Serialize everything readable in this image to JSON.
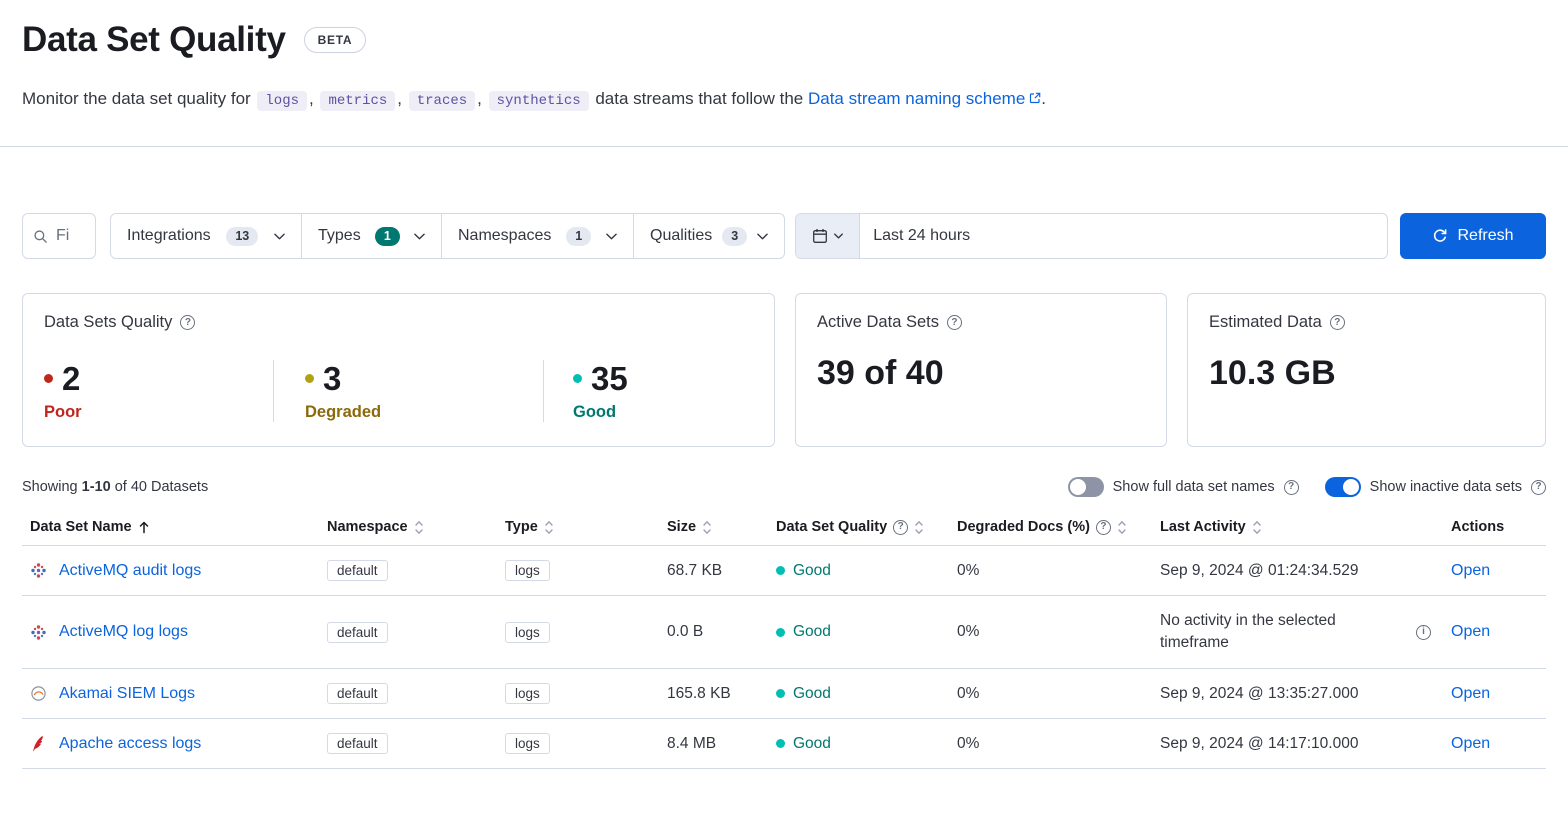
{
  "colors": {
    "accent": "#0b64dd",
    "border": "#d3dae6",
    "text": "#343741",
    "title": "#1a1c21",
    "success": "#007871",
    "success_dot": "#00bfb3",
    "danger": "#bd271e",
    "warning": "#8a6a0b",
    "warning_dot": "#d6bf57",
    "code_bg": "#efedf5",
    "code_text": "#5b53a2",
    "badge_bg": "#e4e8f0",
    "toggle_off": "#8e94a6"
  },
  "page": {
    "title": "Data Set Quality",
    "beta_badge": "BETA",
    "intro": {
      "prefix": "Monitor the data set quality for ",
      "codes": [
        "logs",
        "metrics",
        "traces",
        "synthetics"
      ],
      "separator": ", ",
      "middle": " data streams that follow the ",
      "link": "Data stream naming scheme",
      "suffix": "."
    }
  },
  "filters": {
    "search_placeholder": "Fi",
    "buttons": [
      {
        "label": "Integrations",
        "count": "13",
        "active": false
      },
      {
        "label": "Types",
        "count": "1",
        "active": true
      },
      {
        "label": "Namespaces",
        "count": "1",
        "active": false
      },
      {
        "label": "Qualities",
        "count": "3",
        "active": false
      }
    ],
    "time_range": "Last 24 hours",
    "refresh_label": "Refresh"
  },
  "summary": {
    "quality_panel": {
      "title": "Data Sets Quality",
      "stats": [
        {
          "value": "2",
          "label": "Poor",
          "color": "#bd271e",
          "dot": "#bd271e"
        },
        {
          "value": "3",
          "label": "Degraded",
          "color": "#8a6a0b",
          "dot": "#b3a115"
        },
        {
          "value": "35",
          "label": "Good",
          "color": "#007871",
          "dot": "#00bfb3"
        }
      ]
    },
    "active_panel": {
      "title": "Active Data Sets",
      "value": "39 of 40"
    },
    "estimated_panel": {
      "title": "Estimated Data",
      "value": "10.3 GB"
    }
  },
  "table": {
    "showing": {
      "prefix": "Showing ",
      "range": "1-10",
      "suffix": " of 40 Datasets"
    },
    "toggles": [
      {
        "label": "Show full data set names",
        "on": false
      },
      {
        "label": "Show inactive data sets",
        "on": true
      }
    ],
    "headers": [
      "Data Set Name",
      "Namespace",
      "Type",
      "Size",
      "Data Set Quality",
      "Degraded Docs (%)",
      "Last Activity",
      "Actions"
    ],
    "rows": [
      {
        "name": "ActiveMQ audit logs",
        "icon": "activemq",
        "namespace": "default",
        "type": "logs",
        "size": "68.7 KB",
        "quality": "Good",
        "degraded": "0%",
        "last_activity": "Sep 9, 2024 @ 01:24:34.529",
        "no_activity": false,
        "action": "Open"
      },
      {
        "name": "ActiveMQ log logs",
        "icon": "activemq",
        "namespace": "default",
        "type": "logs",
        "size": "0.0 B",
        "quality": "Good",
        "degraded": "0%",
        "last_activity": "No activity in the selected timeframe",
        "no_activity": true,
        "action": "Open"
      },
      {
        "name": "Akamai SIEM Logs",
        "icon": "akamai",
        "namespace": "default",
        "type": "logs",
        "size": "165.8 KB",
        "quality": "Good",
        "degraded": "0%",
        "last_activity": "Sep 9, 2024 @ 13:35:27.000",
        "no_activity": false,
        "action": "Open"
      },
      {
        "name": "Apache access logs",
        "icon": "apache",
        "namespace": "default",
        "type": "logs",
        "size": "8.4 MB",
        "quality": "Good",
        "degraded": "0%",
        "last_activity": "Sep 9, 2024 @ 14:17:10.000",
        "no_activity": false,
        "action": "Open"
      }
    ]
  }
}
